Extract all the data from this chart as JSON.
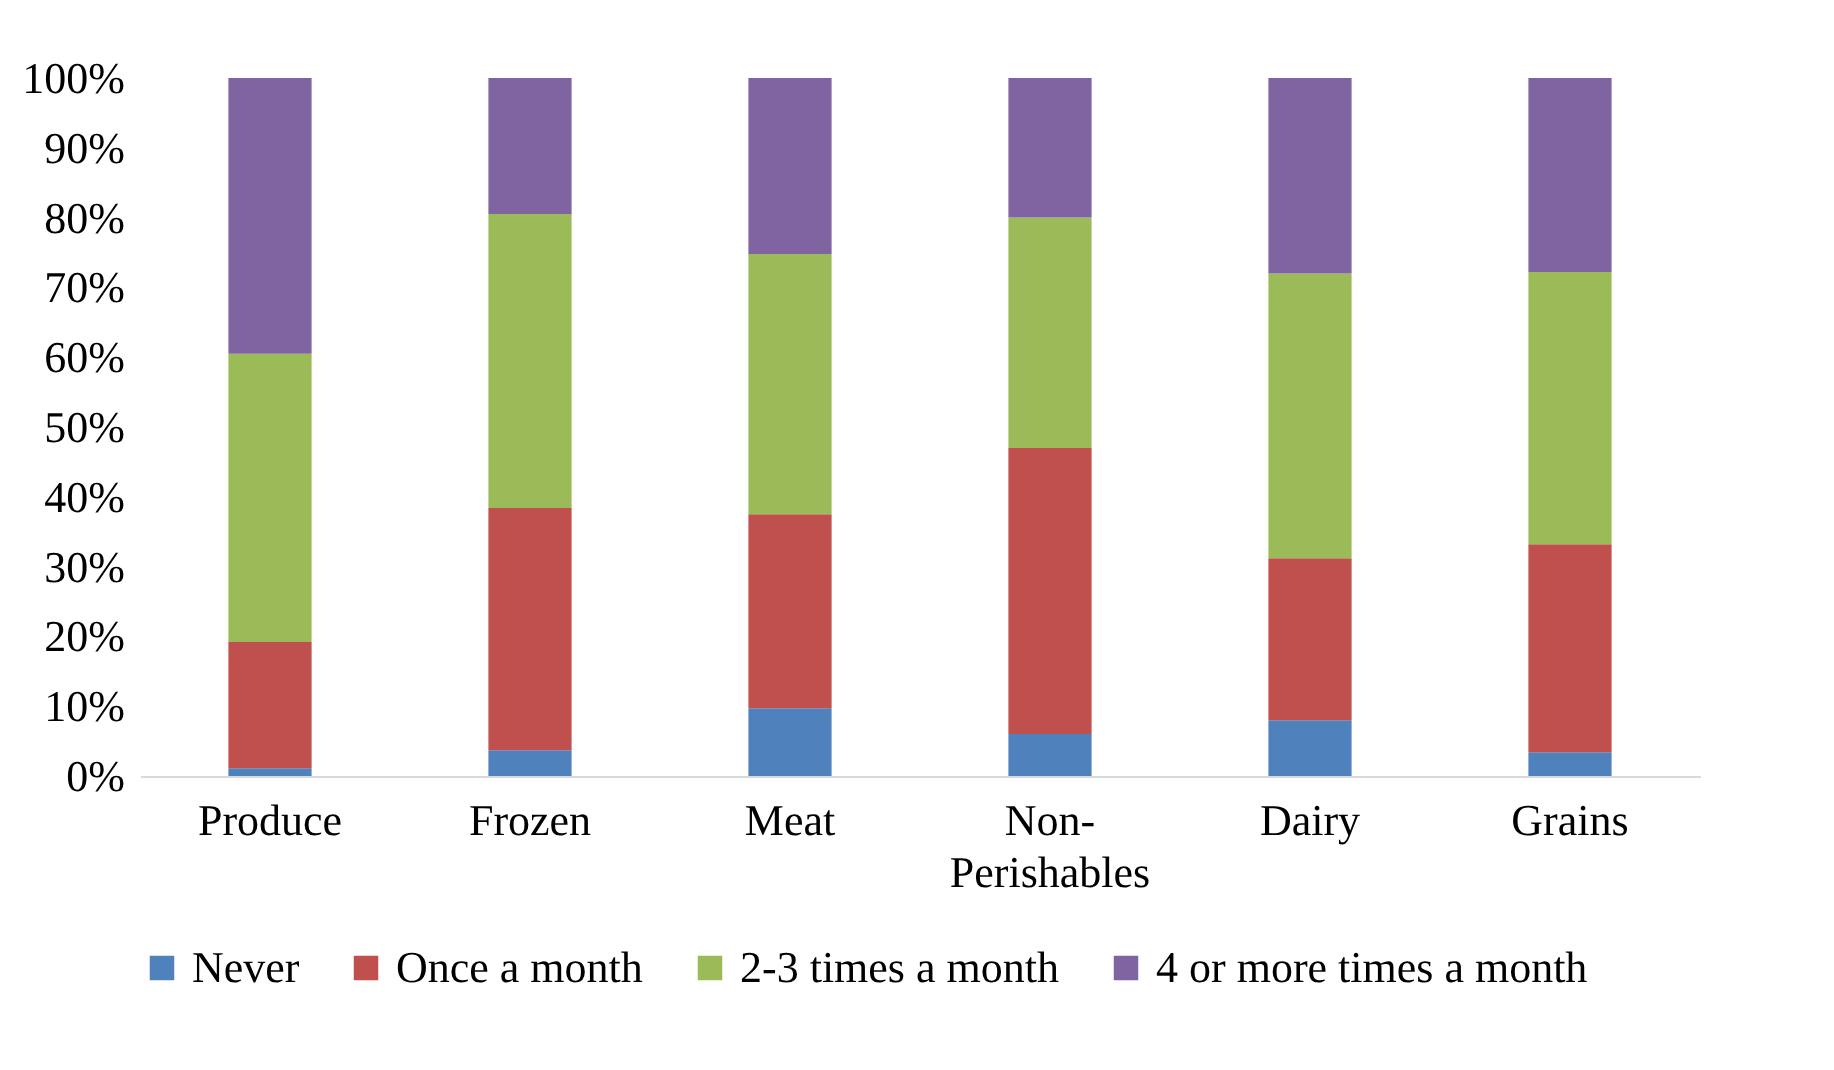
{
  "chart_data": {
    "type": "bar",
    "stacked": true,
    "categories": [
      "Produce",
      "Frozen",
      "Meat",
      "Non-Perishables",
      "Dairy",
      "Grains"
    ],
    "series": [
      {
        "name": "Never",
        "color": "#4f81bd",
        "values": [
          1.1,
          3.7,
          9.7,
          6,
          8,
          3.4
        ]
      },
      {
        "name": "Once a month",
        "color": "#c0504d",
        "values": [
          18.1,
          34.7,
          27.8,
          41,
          23.2,
          29.8
        ]
      },
      {
        "name": "2-3 times a month",
        "color": "#9bbb59",
        "values": [
          41.3,
          42.1,
          37.3,
          33,
          40.8,
          39
        ]
      },
      {
        "name": "4 or more times a month",
        "color": "#8064a2",
        "values": [
          39.5,
          19.5,
          25.2,
          20,
          28,
          27.8
        ]
      }
    ],
    "ylim": [
      0,
      100
    ],
    "yticks": [
      {
        "value": 0,
        "label": "0%"
      },
      {
        "value": 10,
        "label": "10%"
      },
      {
        "value": 20,
        "label": "20%"
      },
      {
        "value": 30,
        "label": "30%"
      },
      {
        "value": 40,
        "label": "40%"
      },
      {
        "value": 50,
        "label": "50%"
      },
      {
        "value": 60,
        "label": "60%"
      },
      {
        "value": 70,
        "label": "70%"
      },
      {
        "value": 80,
        "label": "80%"
      },
      {
        "value": 90,
        "label": "90%"
      },
      {
        "value": 100,
        "label": "100%"
      }
    ],
    "legend": "bottom",
    "grid": false
  }
}
